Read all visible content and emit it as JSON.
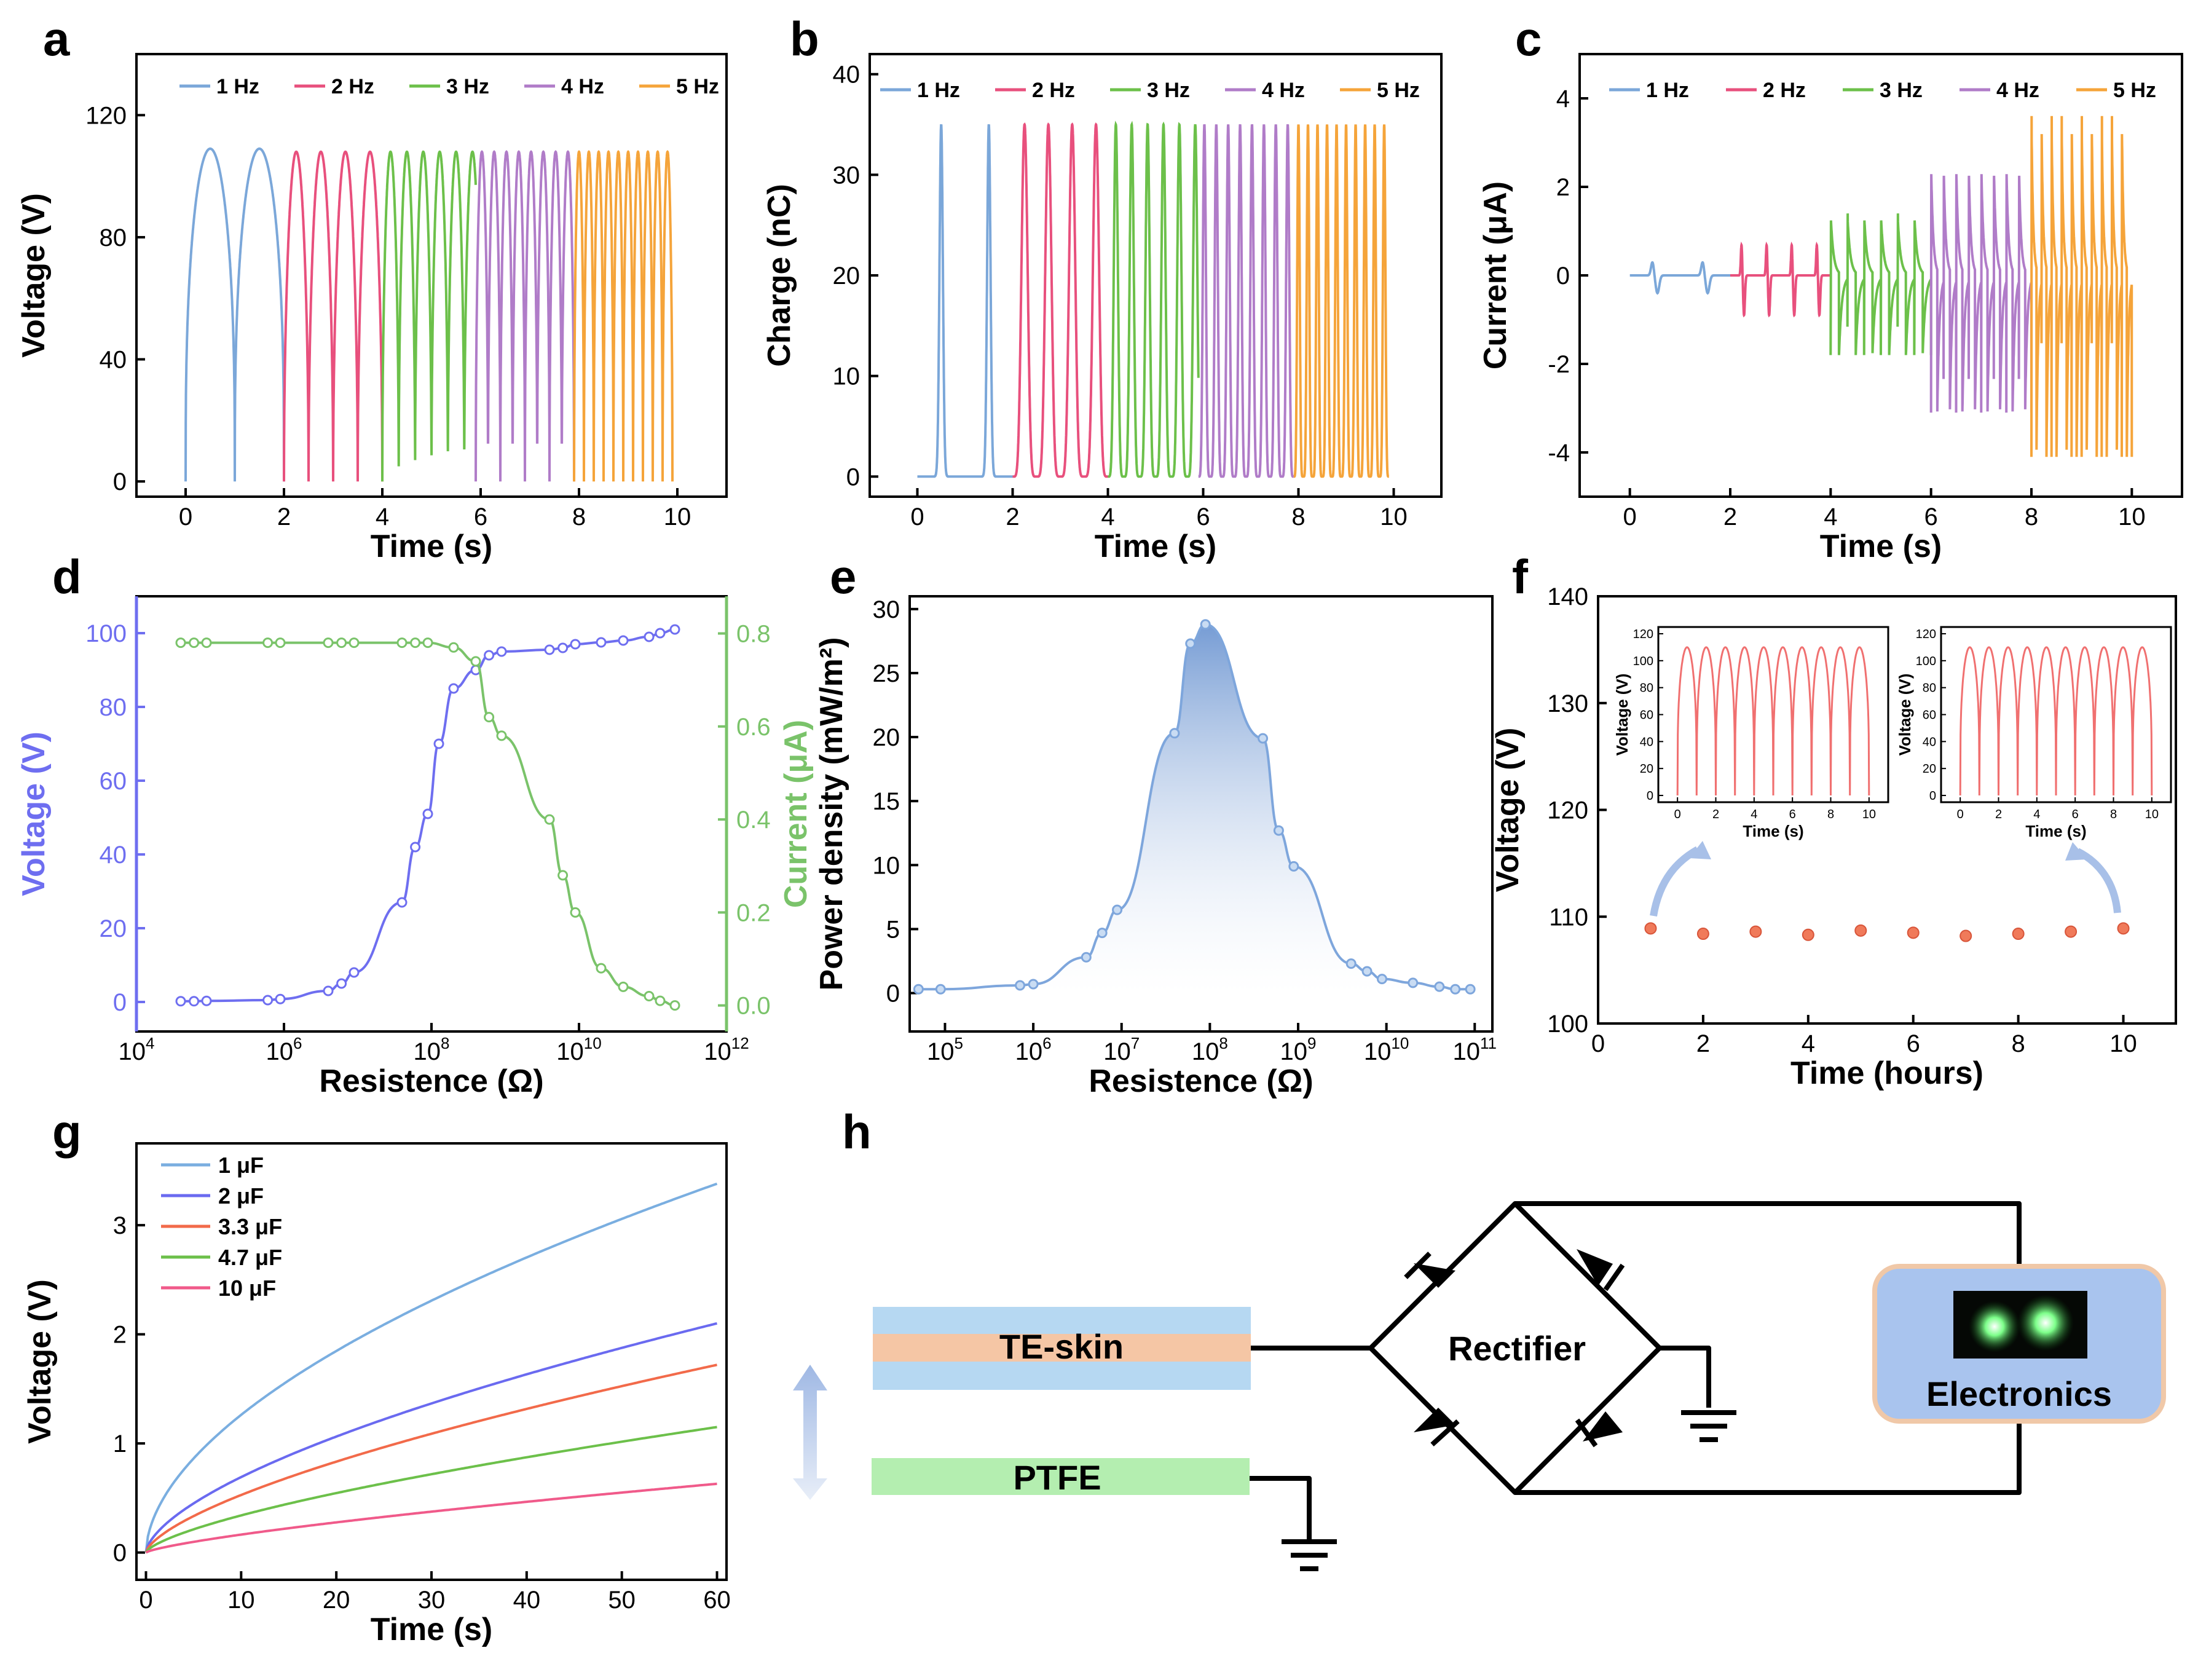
{
  "chart_data": [
    {
      "panel": "a",
      "type": "line",
      "xlabel": "Time (s)",
      "ylabel": "Voltage (V)",
      "xlim": [
        -1,
        11
      ],
      "ylim": [
        -5,
        140
      ],
      "xticks": [
        "0",
        "2",
        "4",
        "6",
        "8",
        "10"
      ],
      "yticks": [
        "0",
        "40",
        "80",
        "120"
      ],
      "legend": [
        "1 Hz",
        "2 Hz",
        "3 Hz",
        "4 Hz",
        "5 Hz"
      ],
      "series": [
        {
          "name": "1 Hz",
          "x_range": [
            0,
            2
          ],
          "freq": 1,
          "peak": 109,
          "color": "#7ba7d9"
        },
        {
          "name": "2 Hz",
          "x_range": [
            2,
            4
          ],
          "freq": 2,
          "peak": 108,
          "color": "#e8507d"
        },
        {
          "name": "3 Hz",
          "x_range": [
            4,
            5.9
          ],
          "freq": 3,
          "peak": 108,
          "color": "#6cc04a"
        },
        {
          "name": "4 Hz",
          "x_range": [
            5.9,
            7.9
          ],
          "freq": 4,
          "peak": 108,
          "color": "#b07cc8"
        },
        {
          "name": "5 Hz",
          "x_range": [
            7.9,
            9.9
          ],
          "freq": 5,
          "peak": 108,
          "color": "#f5a43a"
        }
      ]
    },
    {
      "panel": "b",
      "type": "line",
      "xlabel": "Time (s)",
      "ylabel": "Charge (nC)",
      "xlim": [
        -1,
        11
      ],
      "ylim": [
        -2,
        42
      ],
      "xticks": [
        "0",
        "2",
        "4",
        "6",
        "8",
        "10"
      ],
      "yticks": [
        "0",
        "10",
        "20",
        "30",
        "40"
      ],
      "legend": [
        "1 Hz",
        "2 Hz",
        "3 Hz",
        "4 Hz",
        "5 Hz"
      ],
      "series": [
        {
          "name": "1 Hz",
          "x_range": [
            0,
            2
          ],
          "freq": 1,
          "peak": 35,
          "color": "#7ba7d9"
        },
        {
          "name": "2 Hz",
          "x_range": [
            2,
            4
          ],
          "freq": 2,
          "peak": 35,
          "color": "#e8507d"
        },
        {
          "name": "3 Hz",
          "x_range": [
            4,
            5.9
          ],
          "freq": 3,
          "peak": 35,
          "color": "#6cc04a"
        },
        {
          "name": "4 Hz",
          "x_range": [
            5.9,
            7.9
          ],
          "freq": 4,
          "peak": 35,
          "color": "#b07cc8"
        },
        {
          "name": "5 Hz",
          "x_range": [
            7.9,
            9.9
          ],
          "freq": 5,
          "peak": 35,
          "color": "#f5a43a"
        }
      ]
    },
    {
      "panel": "c",
      "type": "line",
      "xlabel": "Time (s)",
      "ylabel": "Current (μA)",
      "xlim": [
        -1,
        11
      ],
      "ylim": [
        -5,
        5
      ],
      "xticks": [
        "0",
        "2",
        "4",
        "6",
        "8",
        "10"
      ],
      "yticks": [
        "-4",
        "-2",
        "0",
        "2",
        "4"
      ],
      "legend": [
        "1 Hz",
        "2 Hz",
        "3 Hz",
        "4 Hz",
        "5 Hz"
      ],
      "series": [
        {
          "name": "1 Hz",
          "x_range": [
            0,
            2
          ],
          "freq": 1,
          "pos_peak": 0.3,
          "neg_peak": -0.4,
          "color": "#7ba7d9"
        },
        {
          "name": "2 Hz",
          "x_range": [
            2,
            4
          ],
          "freq": 2,
          "pos_peak": 0.7,
          "neg_peak": -0.9,
          "color": "#e8507d"
        },
        {
          "name": "3 Hz",
          "x_range": [
            4,
            6
          ],
          "freq": 3,
          "pos_peak": 1.4,
          "neg_peak": -1.8,
          "color": "#6cc04a"
        },
        {
          "name": "4 Hz",
          "x_range": [
            6,
            8
          ],
          "freq": 4,
          "pos_peak": 2.6,
          "neg_peak": -3.1,
          "color": "#b07cc8"
        },
        {
          "name": "5 Hz",
          "x_range": [
            8,
            10
          ],
          "freq": 5,
          "pos_peak": 3.6,
          "neg_peak": -4.1,
          "color": "#f5a43a"
        }
      ]
    },
    {
      "panel": "d",
      "type": "line",
      "xlabel": "Resistence (Ω)",
      "ylabel": "Voltage (V)",
      "ylabel2": "Current (μA)",
      "xlim": [
        4,
        12
      ],
      "ylim": [
        -8,
        110
      ],
      "ylim2": [
        -0.056,
        0.88
      ],
      "x_is_log10": true,
      "xticks": [
        "10^4",
        "10^6",
        "10^8",
        "10^10",
        "10^12"
      ],
      "yticks": [
        "0",
        "20",
        "40",
        "60",
        "80",
        "100"
      ],
      "yticks2": [
        "0.0",
        "0.2",
        "0.4",
        "0.6",
        "0.8"
      ],
      "series": [
        {
          "name": "Voltage",
          "axis": "left",
          "color": "#6e6ef0",
          "log10_x": [
            4.6,
            4.78,
            4.95,
            5.78,
            5.95,
            6.6,
            6.78,
            6.95,
            7.6,
            7.78,
            7.95,
            8.1,
            8.3,
            8.6,
            8.78,
            8.95,
            9.6,
            9.78,
            9.95,
            10.3,
            10.6,
            10.95,
            11.1,
            11.3
          ],
          "y": [
            0.2,
            0.2,
            0.3,
            0.5,
            0.8,
            3,
            5,
            8,
            27,
            42,
            51,
            70,
            85,
            90,
            94,
            95,
            95.5,
            96,
            97,
            97.5,
            98,
            99,
            100,
            101
          ]
        },
        {
          "name": "Current",
          "axis": "right",
          "color": "#7ac36a",
          "log10_x": [
            4.6,
            4.78,
            4.95,
            5.78,
            5.95,
            6.6,
            6.78,
            6.95,
            7.6,
            7.78,
            7.95,
            8.3,
            8.6,
            8.78,
            8.95,
            9.6,
            9.78,
            9.95,
            10.3,
            10.6,
            10.95,
            11.1,
            11.3
          ],
          "y": [
            0.78,
            0.78,
            0.78,
            0.78,
            0.78,
            0.78,
            0.78,
            0.78,
            0.78,
            0.78,
            0.78,
            0.77,
            0.74,
            0.62,
            0.58,
            0.4,
            0.28,
            0.2,
            0.08,
            0.04,
            0.02,
            0.01,
            0.0
          ]
        }
      ]
    },
    {
      "panel": "e",
      "type": "area",
      "xlabel": "Resistence (Ω)",
      "ylabel": "Power density (mW/m²)",
      "xlim": [
        4.6,
        11.2
      ],
      "ylim": [
        -3,
        31
      ],
      "x_is_log10": true,
      "xticks": [
        "10^5",
        "10^6",
        "10^7",
        "10^8",
        "10^9",
        "10^10",
        "10^11"
      ],
      "yticks": [
        "0",
        "5",
        "10",
        "15",
        "20",
        "25",
        "30"
      ],
      "series": [
        {
          "name": "Power density",
          "color": "#7ea6dc",
          "log10_x": [
            4.7,
            4.95,
            5.85,
            6.0,
            6.6,
            6.78,
            6.95,
            7.6,
            7.78,
            7.95,
            8.6,
            8.78,
            8.95,
            9.6,
            9.78,
            9.95,
            10.3,
            10.6,
            10.78,
            10.95
          ],
          "y": [
            0.3,
            0.3,
            0.6,
            0.7,
            2.8,
            4.7,
            6.5,
            20.3,
            27.3,
            28.8,
            19.9,
            12.7,
            9.9,
            2.3,
            1.7,
            1.1,
            0.8,
            0.5,
            0.3,
            0.3
          ]
        }
      ]
    },
    {
      "panel": "f",
      "type": "scatter",
      "xlabel": "Time (hours)",
      "ylabel": "Voltage (V)",
      "xlim": [
        0,
        11
      ],
      "ylim": [
        100,
        140
      ],
      "xticks": [
        "0",
        "2",
        "4",
        "6",
        "8",
        "10"
      ],
      "yticks": [
        "100",
        "110",
        "120",
        "130",
        "140"
      ],
      "series": [
        {
          "name": "Voltage",
          "color": "#f07a5a",
          "x": [
            1,
            2,
            3,
            4,
            5,
            6,
            7,
            8,
            9,
            10
          ],
          "y": [
            108.9,
            108.4,
            108.6,
            108.3,
            108.7,
            108.5,
            108.2,
            108.4,
            108.6,
            108.9
          ]
        }
      ],
      "insets": [
        {
          "xlabel": "Time (s)",
          "ylabel": "Voltage (V)",
          "xticks": [
            "0",
            "2",
            "4",
            "6",
            "8",
            "10"
          ],
          "yticks": [
            "0",
            "20",
            "40",
            "60",
            "80",
            "100",
            "120"
          ],
          "freq": 1,
          "peak": 110,
          "color": "#f07070"
        },
        {
          "xlabel": "Time (s)",
          "ylabel": "Voltage (V)",
          "xticks": [
            "0",
            "2",
            "4",
            "6",
            "8",
            "10"
          ],
          "yticks": [
            "0",
            "20",
            "40",
            "60",
            "80",
            "100",
            "120"
          ],
          "freq": 1,
          "peak": 110,
          "color": "#f07070"
        }
      ]
    },
    {
      "panel": "g",
      "type": "line",
      "xlabel": "Time (s)",
      "ylabel": "Voltage (V)",
      "xlim": [
        -1,
        61
      ],
      "ylim": [
        -0.25,
        3.75
      ],
      "xticks": [
        "0",
        "10",
        "20",
        "30",
        "40",
        "50",
        "60"
      ],
      "yticks": [
        "0",
        "1",
        "2",
        "3"
      ],
      "legend": [
        "1 μF",
        "2 μF",
        "3.3 μF",
        "4.7 μF",
        "10 μF"
      ],
      "series": [
        {
          "name": "1 μF",
          "final": 3.38,
          "exponent": 0.55,
          "color": "#7aaee0"
        },
        {
          "name": "2 μF",
          "final": 2.1,
          "exponent": 0.62,
          "color": "#6a6af0"
        },
        {
          "name": "3.3 μF",
          "final": 1.72,
          "exponent": 0.66,
          "color": "#f26a4a"
        },
        {
          "name": "4.7 μF",
          "final": 1.15,
          "exponent": 0.68,
          "color": "#6cc04a"
        },
        {
          "name": "10 μF",
          "final": 0.63,
          "exponent": 0.75,
          "color": "#f05a8a"
        }
      ]
    }
  ],
  "panel_labels": [
    "a",
    "b",
    "c",
    "d",
    "e",
    "f",
    "g",
    "h"
  ],
  "circuit": {
    "te_skin_label": "TE-skin",
    "ptfe_label": "PTFE",
    "rectifier_label": "Rectifier",
    "electronics_label": "Electronics",
    "colors": {
      "te_skin_outer": "#b6d8f2",
      "te_skin_inner": "#f5c6a5",
      "ptfe": "#b4eeb0",
      "electronics_fill": "#a9c4ee",
      "electronics_border": "#f0c8a8",
      "arrow": "#a8c0e8"
    }
  }
}
